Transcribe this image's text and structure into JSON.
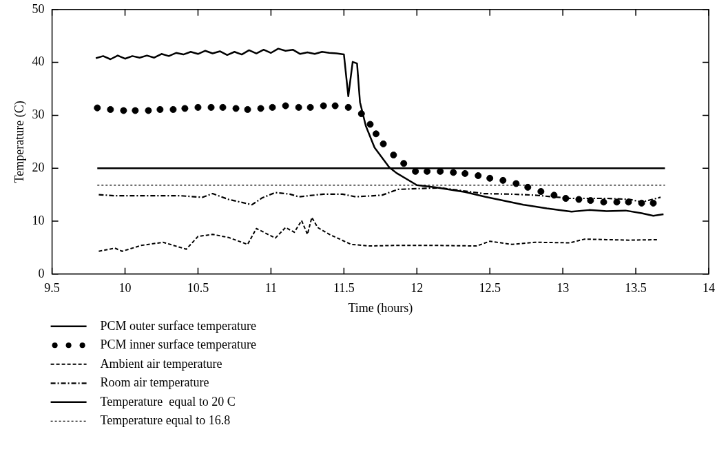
{
  "chart_data": {
    "type": "line",
    "xlabel": "Time (hours)",
    "ylabel": "Temperature (C)",
    "xlim": [
      9.5,
      14
    ],
    "xticks": [
      9.5,
      10,
      10.5,
      11,
      11.5,
      12,
      12.5,
      13,
      13.5,
      14
    ],
    "ylim": [
      0,
      50
    ],
    "yticks": [
      0,
      10,
      20,
      30,
      40,
      50
    ],
    "grid": false,
    "legend": "bottom left",
    "series": [
      {
        "name": "PCM outer surface temperature",
        "color": "#000000",
        "line_style": "solid",
        "marker": "none",
        "x": [
          9.8,
          9.85,
          9.9,
          9.95,
          10.0,
          10.05,
          10.1,
          10.15,
          10.2,
          10.25,
          10.3,
          10.35,
          10.4,
          10.45,
          10.5,
          10.55,
          10.6,
          10.65,
          10.7,
          10.75,
          10.8,
          10.85,
          10.9,
          10.95,
          11.0,
          11.05,
          11.1,
          11.15,
          11.2,
          11.25,
          11.3,
          11.35,
          11.4,
          11.45,
          11.5,
          11.53,
          11.56,
          11.59,
          11.61,
          11.65,
          11.71,
          11.81,
          11.86,
          12.0,
          12.12,
          12.33,
          12.47,
          12.73,
          12.89,
          13.06,
          13.18,
          13.3,
          13.43,
          13.54,
          13.62,
          13.69
        ],
        "values": [
          40.8,
          41.2,
          40.6,
          41.3,
          40.7,
          41.2,
          40.9,
          41.3,
          40.9,
          41.6,
          41.2,
          41.8,
          41.5,
          42.0,
          41.6,
          42.2,
          41.7,
          42.1,
          41.4,
          42.0,
          41.5,
          42.3,
          41.7,
          42.4,
          41.8,
          42.6,
          42.2,
          42.4,
          41.6,
          41.9,
          41.6,
          42.0,
          41.8,
          41.7,
          41.5,
          33.6,
          40.1,
          39.8,
          32.5,
          28.0,
          23.9,
          20.2,
          19.1,
          16.8,
          16.4,
          15.5,
          14.6,
          13.1,
          12.4,
          11.8,
          12.1,
          11.9,
          12.0,
          11.5,
          11.0,
          11.3
        ]
      },
      {
        "name": "PCM inner surface temperature",
        "type": "scatter",
        "color": "#000000",
        "marker": "circle",
        "x": [
          9.81,
          9.9,
          9.99,
          10.07,
          10.16,
          10.24,
          10.33,
          10.41,
          10.5,
          10.59,
          10.67,
          10.76,
          10.84,
          10.93,
          11.01,
          11.1,
          11.19,
          11.27,
          11.36,
          11.44,
          11.53,
          11.62,
          11.68,
          11.72,
          11.77,
          11.84,
          11.91,
          11.99,
          12.07,
          12.16,
          12.25,
          12.33,
          12.42,
          12.5,
          12.59,
          12.68,
          12.76,
          12.85,
          12.94,
          13.02,
          13.11,
          13.19,
          13.28,
          13.37,
          13.45,
          13.54,
          13.62
        ],
        "values": [
          31.4,
          31.1,
          30.9,
          30.9,
          30.9,
          31.1,
          31.1,
          31.3,
          31.5,
          31.5,
          31.5,
          31.3,
          31.1,
          31.3,
          31.5,
          31.8,
          31.5,
          31.5,
          31.8,
          31.8,
          31.5,
          30.3,
          28.3,
          26.5,
          24.6,
          22.5,
          20.9,
          19.4,
          19.4,
          19.4,
          19.2,
          19.0,
          18.6,
          18.1,
          17.7,
          17.1,
          16.4,
          15.6,
          14.9,
          14.3,
          14.1,
          13.9,
          13.6,
          13.6,
          13.6,
          13.4,
          13.4
        ]
      },
      {
        "name": "Ambient air temperature",
        "color": "#000000",
        "line_style": "dashed",
        "marker": "none",
        "x": [
          9.82,
          9.93,
          9.98,
          10.11,
          10.26,
          10.42,
          10.5,
          10.6,
          10.71,
          10.84,
          10.9,
          11.03,
          11.1,
          11.16,
          11.21,
          11.25,
          11.28,
          11.32,
          11.4,
          11.55,
          11.68,
          11.84,
          12.16,
          12.41,
          12.5,
          12.65,
          12.81,
          13.05,
          13.15,
          13.3,
          13.46,
          13.65
        ],
        "values": [
          4.3,
          4.9,
          4.3,
          5.4,
          6.0,
          4.7,
          7.1,
          7.5,
          6.9,
          5.6,
          8.6,
          6.8,
          8.8,
          7.9,
          10.1,
          7.5,
          10.7,
          8.8,
          7.5,
          5.6,
          5.3,
          5.4,
          5.4,
          5.3,
          6.2,
          5.6,
          6.0,
          5.9,
          6.6,
          6.5,
          6.4,
          6.5
        ]
      },
      {
        "name": "Room air temperature",
        "color": "#000000",
        "line_style": "dashdot",
        "marker": "none",
        "x": [
          9.82,
          9.93,
          10.14,
          10.38,
          10.53,
          10.6,
          10.71,
          10.87,
          10.94,
          11.03,
          11.13,
          11.19,
          11.36,
          11.49,
          11.58,
          11.76,
          11.87,
          12.16,
          12.46,
          12.65,
          12.81,
          13.05,
          13.3,
          13.46,
          13.54,
          13.67
        ],
        "values": [
          15.0,
          14.8,
          14.8,
          14.8,
          14.5,
          15.2,
          14.1,
          13.1,
          14.4,
          15.4,
          15.1,
          14.6,
          15.1,
          15.1,
          14.6,
          14.9,
          16.0,
          16.3,
          15.2,
          15.1,
          14.9,
          14.3,
          14.3,
          14.1,
          13.6,
          14.5
        ]
      },
      {
        "name": "Temperature  equal to 20 C",
        "color": "#000000",
        "line_style": "solid",
        "marker": "none",
        "x": [
          9.81,
          13.7
        ],
        "values": [
          20,
          20
        ]
      },
      {
        "name": "Temperature equal to 16.8",
        "color": "#000000",
        "line_style": "dotted",
        "marker": "none",
        "x": [
          9.81,
          13.7
        ],
        "values": [
          16.8,
          16.8
        ]
      }
    ]
  }
}
